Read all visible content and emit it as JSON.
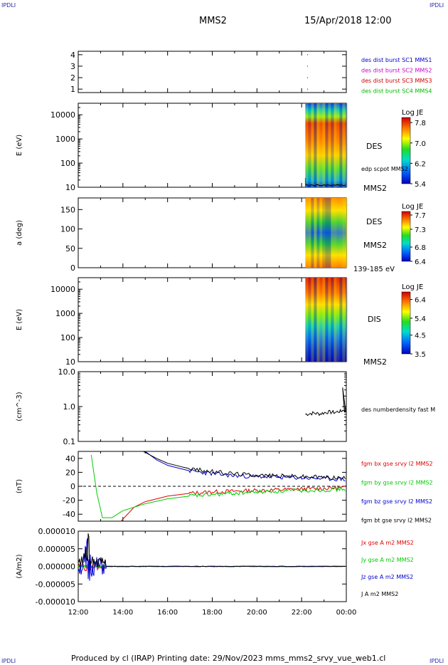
{
  "corner_labels": {
    "tl": "IPDLI",
    "tr": "IPDLI",
    "bl": "IPDLI",
    "br": "IPDLI"
  },
  "header": {
    "spacecraft": "MMS2",
    "datetime": "15/Apr/2018 12:00"
  },
  "footer": {
    "text": "Produced by cl (IRAP)   Printing date: 29/Nov/2023   mms_mms2_srvy_vue_web1.cl"
  },
  "colors": {
    "mms1": "#0000cc",
    "mms2": "#cc00cc",
    "mms3": "#cc0000",
    "mms4": "#00bb00",
    "bx": "#dd0000",
    "by": "#00cc00",
    "bz": "#0000cc",
    "bt": "#000000"
  },
  "chart_data": [
    {
      "type": "scatter",
      "panel": "availability",
      "yticks": [
        "1",
        "2",
        "3",
        "4"
      ],
      "ylim": [
        0.7,
        4.3
      ],
      "points": [
        {
          "x": "22:15",
          "y": 1
        },
        {
          "x": "22:15",
          "y": 2
        },
        {
          "x": "22:15",
          "y": 3
        },
        {
          "x": "22:15",
          "y": 4
        }
      ],
      "legend": [
        "des dist burst SC1 MMS1",
        "des dist burst SC2 MMS2",
        "des dist burst SC3 MMS3",
        "des dist burst SC4 MMS4"
      ]
    },
    {
      "type": "heatmap",
      "panel": "des-energy",
      "ylabel": "E (eV)",
      "scale": "log",
      "ylim": [
        10,
        30000
      ],
      "yticks": [
        "10",
        "100",
        "1000",
        "10000"
      ],
      "xrange_data": [
        "22:10",
        "00:00"
      ],
      "colorbar": {
        "title": "Log JE",
        "ticks": [
          "7.8",
          "7.0",
          "6.2",
          "5.4"
        ],
        "range": [
          5.4,
          8.0
        ]
      },
      "side_labels": [
        "DES",
        "edp scpot MMS2",
        "MMS2"
      ]
    },
    {
      "type": "heatmap",
      "panel": "des-pitch",
      "ylabel": "a (deg)",
      "ylim": [
        0,
        180
      ],
      "yticks": [
        "0",
        "50",
        "100",
        "150"
      ],
      "xrange_data": [
        "22:10",
        "00:00"
      ],
      "colorbar": {
        "title": "Log JE",
        "ticks": [
          "7.7",
          "7.3",
          "6.8",
          "6.4"
        ],
        "range": [
          6.4,
          7.8
        ]
      },
      "side_labels": [
        "DES",
        "MMS2",
        "139-185 eV"
      ]
    },
    {
      "type": "heatmap",
      "panel": "dis-energy",
      "ylabel": "E (eV)",
      "scale": "log",
      "ylim": [
        10,
        30000
      ],
      "yticks": [
        "10",
        "100",
        "1000",
        "10000"
      ],
      "xrange_data": [
        "22:10",
        "00:00"
      ],
      "colorbar": {
        "title": "Log JE",
        "ticks": [
          "6.4",
          "5.4",
          "4.5",
          "3.5"
        ],
        "range": [
          3.5,
          6.8
        ]
      },
      "side_labels": [
        "DIS",
        "MMS2"
      ]
    },
    {
      "type": "line",
      "panel": "density",
      "ylabel": "(cm^-3)",
      "scale": "log",
      "ylim": [
        0.1,
        10
      ],
      "yticks": [
        "0.1",
        "1.0",
        "10.0"
      ],
      "series": [
        {
          "name": "des numberdensity fast M",
          "x": [
            "22:10",
            "22:30",
            "22:50",
            "23:10",
            "23:30",
            "23:45",
            "23:55",
            "00:00"
          ],
          "values": [
            0.6,
            0.65,
            0.62,
            0.7,
            0.68,
            0.75,
            0.8,
            0.7
          ]
        }
      ]
    },
    {
      "type": "line",
      "panel": "magnetic-field",
      "ylabel": "(nT)",
      "ylim": [
        -50,
        50
      ],
      "yticks": [
        "-40",
        "-20",
        "0",
        "20",
        "40"
      ],
      "series": [
        {
          "name": "fgm bx gse srvy l2 MMS2",
          "x": [
            "13:55",
            "14:30",
            "15:00",
            "16:00",
            "17:00",
            "18:00",
            "19:00",
            "20:00",
            "21:00",
            "22:00",
            "23:00",
            "00:00"
          ],
          "values": [
            -50,
            -30,
            -22,
            -14,
            -10,
            -8,
            -7,
            -6,
            -5,
            -4,
            -3,
            -2
          ]
        },
        {
          "name": "fgm by gse srvy l2 MMS2",
          "x": [
            "12:35",
            "12:50",
            "13:05",
            "13:30",
            "14:00",
            "15:00",
            "16:00",
            "17:00",
            "18:00",
            "19:00",
            "20:00",
            "21:00",
            "22:00",
            "23:00",
            "00:00"
          ],
          "values": [
            45,
            -10,
            -45,
            -45,
            -35,
            -25,
            -18,
            -14,
            -12,
            -10,
            -8,
            -7,
            -6,
            -5,
            -4
          ]
        },
        {
          "name": "fgm bz gse srvy l2 MMS2",
          "x": [
            "15:00",
            "15:30",
            "16:00",
            "17:00",
            "18:00",
            "19:00",
            "20:00",
            "21:00",
            "22:00",
            "23:00",
            "00:00"
          ],
          "values": [
            50,
            38,
            30,
            22,
            18,
            15,
            14,
            13,
            12,
            11,
            10
          ]
        },
        {
          "name": "fgm bt gse srvy l2 MMS2",
          "x": [
            "14:55",
            "15:30",
            "16:00",
            "17:00",
            "18:00",
            "19:00",
            "20:00",
            "21:00",
            "22:00",
            "23:00",
            "00:00"
          ],
          "values": [
            50,
            40,
            33,
            25,
            21,
            18,
            16,
            15,
            14,
            13,
            12
          ]
        }
      ]
    },
    {
      "type": "line",
      "panel": "current",
      "ylabel": "(A/m2)",
      "ylim": [
        -1e-05,
        1e-05
      ],
      "yticks": [
        "-0.000010",
        "-0.000005",
        "0.000000",
        "0.000005",
        "0.000010"
      ],
      "xticks": [
        "12:00",
        "14:00",
        "16:00",
        "18:00",
        "20:00",
        "22:00",
        "00:00"
      ],
      "series": [
        {
          "name": "Jx gse A m2 MMS2",
          "x": [
            "12:00",
            "13:00",
            "13:15",
            "00:00"
          ],
          "values": [
            2e-06,
            -2e-06,
            0.0,
            0.0
          ]
        },
        {
          "name": "Jy gse A m2 MMS2",
          "x": [
            "12:00",
            "13:00",
            "13:15",
            "00:00"
          ],
          "values": [
            -1e-06,
            1e-06,
            0.0,
            0.0
          ]
        },
        {
          "name": "Jz gse A m2 MMS2",
          "x": [
            "12:00",
            "12:25",
            "13:15",
            "00:00"
          ],
          "values": [
            -2e-06,
            -9e-06,
            0.0,
            0.0
          ]
        },
        {
          "name": "J A m2 MMS2",
          "x": [
            "12:00",
            "12:25",
            "13:10",
            "00:00"
          ],
          "values": [
            3e-06,
            9.8e-06,
            2.5e-06,
            0.0
          ]
        }
      ]
    }
  ]
}
